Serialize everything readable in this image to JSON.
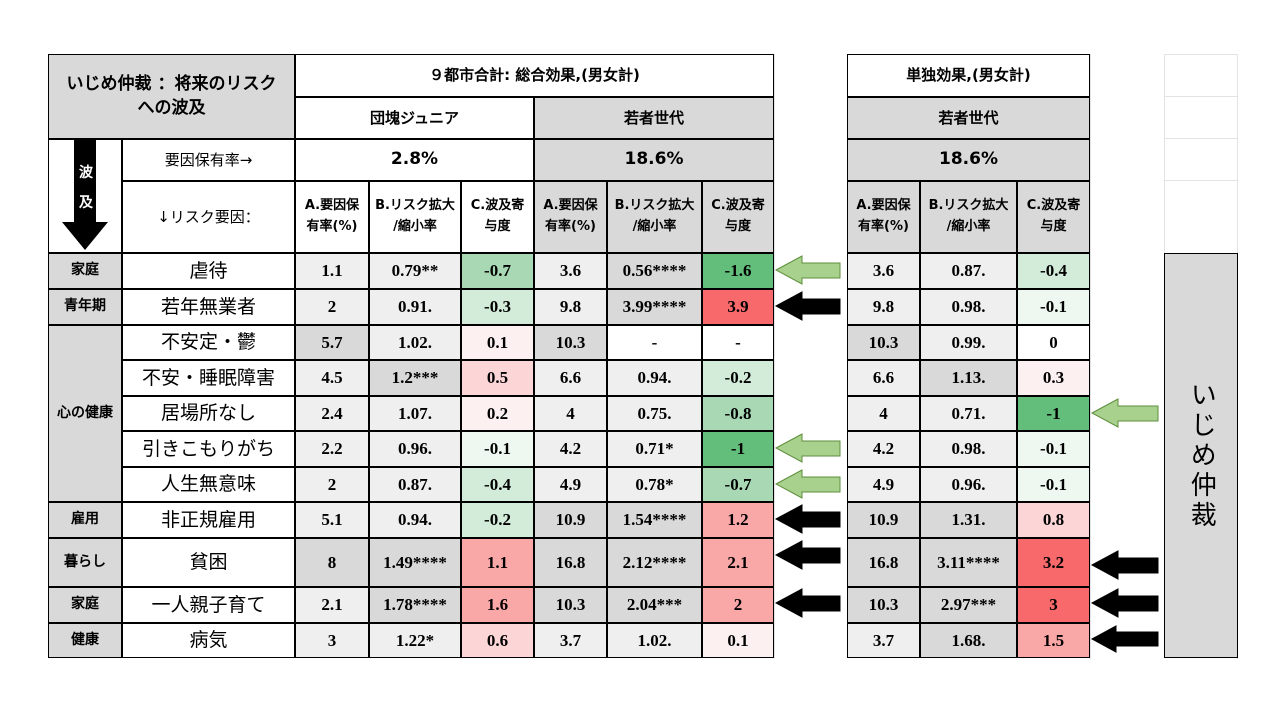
{
  "header": {
    "corner_title_1": "いじめ仲裁 ：将来のリスク",
    "corner_title_2": "への波及",
    "left_group_title": "９都市合計: 総合効果,(男女計)",
    "right_group_title": "単独効果,(男女計)",
    "cohort_dankai": "団塊ジュニア",
    "cohort_wakamono": "若者世代",
    "cohort_wakamono_right": "若者世代",
    "hazard_char1": "波",
    "hazard_char2": "及",
    "prevalence_label": "要因保有率→",
    "prevalence_dankai": "2.8%",
    "prevalence_wakamono": "18.6%",
    "prevalence_wakamono_right": "18.6%",
    "risk_factor_label": "↓リスク要因：",
    "col_a_1": "A.要因保",
    "col_a_2": "有率(%)",
    "col_b_1": "B.リスク拡大",
    "col_b_2": "/縮小率",
    "col_c_1": "C.波及寄",
    "col_c_2": "与度"
  },
  "side_label": "いじめ仲裁",
  "categories": {
    "katei": "家庭",
    "seinenki": "青年期",
    "kokoro": "心の健康",
    "koyo": "雇用",
    "kurashi": "暮らし",
    "katei2": "家庭",
    "kenko": "健康"
  },
  "rows": [
    {
      "factor": "虐待",
      "d_a": "1.1",
      "d_b": "0.79**",
      "d_c": "-0.7",
      "w_a": "3.6",
      "w_b": "0.56****",
      "w_c": "-1.6",
      "r_a": "3.6",
      "r_b": "0.87.",
      "r_c": "-0.4"
    },
    {
      "factor": "若年無業者",
      "d_a": "2",
      "d_b": "0.91.",
      "d_c": "-0.3",
      "w_a": "9.8",
      "w_b": "3.99****",
      "w_c": "3.9",
      "r_a": "9.8",
      "r_b": "0.98.",
      "r_c": "-0.1"
    },
    {
      "factor": "不安定・鬱",
      "d_a": "5.7",
      "d_b": "1.02.",
      "d_c": "0.1",
      "w_a": "10.3",
      "w_b": "-",
      "w_c": "-",
      "r_a": "10.3",
      "r_b": "0.99.",
      "r_c": "0"
    },
    {
      "factor": "不安・睡眠障害",
      "d_a": "4.5",
      "d_b": "1.2***",
      "d_c": "0.5",
      "w_a": "6.6",
      "w_b": "0.94.",
      "w_c": "-0.2",
      "r_a": "6.6",
      "r_b": "1.13.",
      "r_c": "0.3"
    },
    {
      "factor": "居場所なし",
      "d_a": "2.4",
      "d_b": "1.07.",
      "d_c": "0.2",
      "w_a": "4",
      "w_b": "0.75.",
      "w_c": "-0.8",
      "r_a": "4",
      "r_b": "0.71.",
      "r_c": "-1"
    },
    {
      "factor": "引きこもりがち",
      "d_a": "2.2",
      "d_b": "0.96.",
      "d_c": "-0.1",
      "w_a": "4.2",
      "w_b": "0.71*",
      "w_c": "-1",
      "r_a": "4.2",
      "r_b": "0.98.",
      "r_c": "-0.1"
    },
    {
      "factor": "人生無意味",
      "d_a": "2",
      "d_b": "0.87.",
      "d_c": "-0.4",
      "w_a": "4.9",
      "w_b": "0.78*",
      "w_c": "-0.7",
      "r_a": "4.9",
      "r_b": "0.96.",
      "r_c": "-0.1"
    },
    {
      "factor": "非正規雇用",
      "d_a": "5.1",
      "d_b": "0.94.",
      "d_c": "-0.2",
      "w_a": "10.9",
      "w_b": "1.54****",
      "w_c": "1.2",
      "r_a": "10.9",
      "r_b": "1.31.",
      "r_c": "0.8"
    },
    {
      "factor": "貧困",
      "d_a": "8",
      "d_b": "1.49****",
      "d_c": "1.1",
      "w_a": "16.8",
      "w_b": "2.12****",
      "w_c": "2.1",
      "r_a": "16.8",
      "r_b": "3.11****",
      "r_c": "3.2"
    },
    {
      "factor": "一人親子育て",
      "d_a": "2.1",
      "d_b": "1.78****",
      "d_c": "1.6",
      "w_a": "10.3",
      "w_b": "2.04***",
      "w_c": "2",
      "r_a": "10.3",
      "r_b": "2.97***",
      "r_c": "3"
    },
    {
      "factor": "病気",
      "d_a": "3",
      "d_b": "1.22*",
      "d_c": "0.6",
      "w_a": "3.7",
      "w_b": "1.02.",
      "w_c": "0.1",
      "r_a": "3.7",
      "r_b": "1.68.",
      "r_c": "1.5"
    }
  ],
  "colors": {
    "green_strong": "#63be7b",
    "green_mid": "#a9d9b4",
    "green_light": "#d2ecd9",
    "green_faint": "#eef8f0",
    "red_strong": "#f8696b",
    "red_mid": "#faa7a8",
    "red_light": "#fcd6d7",
    "red_faint": "#fdf0f0",
    "arrow_green": "#a9d18e",
    "header_gray": "#d9d9d9"
  }
}
